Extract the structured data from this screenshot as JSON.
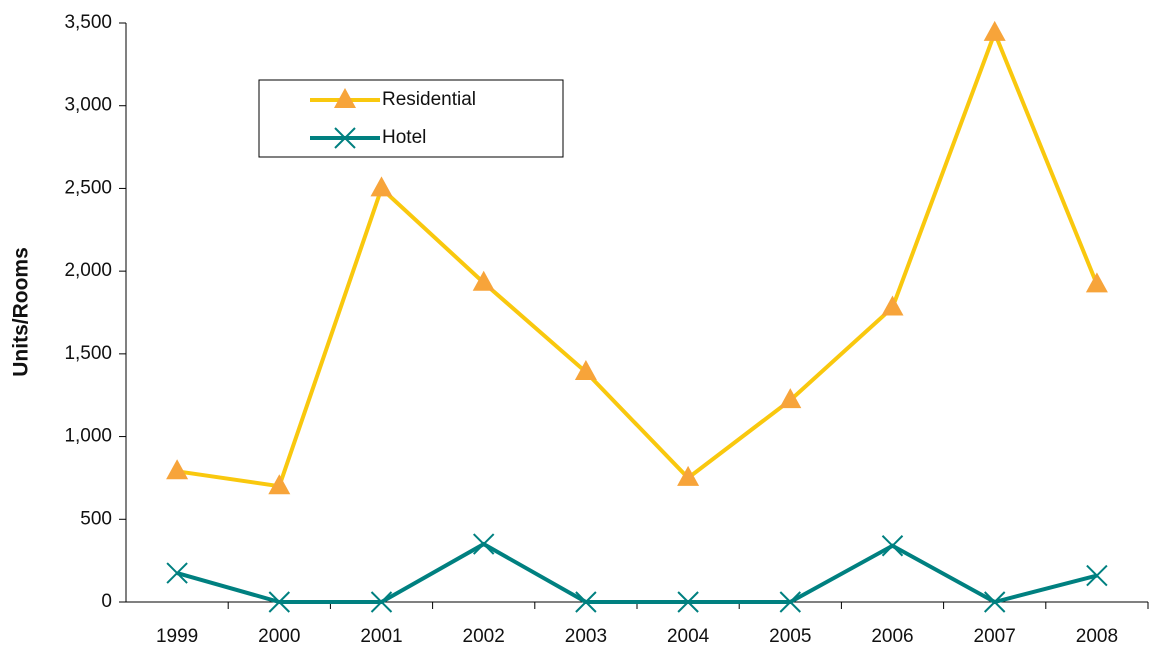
{
  "chart_data": {
    "type": "line",
    "y_label": "Units/Rooms",
    "categories": [
      "1999",
      "2000",
      "2001",
      "2002",
      "2003",
      "2004",
      "2005",
      "2006",
      "2007",
      "2008"
    ],
    "series": [
      {
        "name": "Residential",
        "color": "#f9c80e",
        "marker_color": "#f7a43a",
        "marker": "triangle",
        "values": [
          790,
          700,
          2500,
          1930,
          1390,
          750,
          1220,
          1780,
          3440,
          1920
        ]
      },
      {
        "name": "Hotel",
        "color": "#008080",
        "marker_color": "#008080",
        "marker": "x",
        "values": [
          175,
          0,
          0,
          350,
          0,
          0,
          0,
          340,
          0,
          160
        ]
      }
    ],
    "ylim": [
      0,
      3500
    ],
    "yticks": [
      0,
      500,
      {
        "value": 1000,
        "label": "1,000"
      },
      {
        "value": 1500,
        "label": "1,500"
      },
      {
        "value": 2000,
        "label": "2,000"
      },
      {
        "value": 2500,
        "label": "2,500"
      },
      {
        "value": 3000,
        "label": "3,000"
      },
      {
        "value": 3500,
        "label": "3,500"
      }
    ],
    "grid": false,
    "legend": "upper left"
  }
}
